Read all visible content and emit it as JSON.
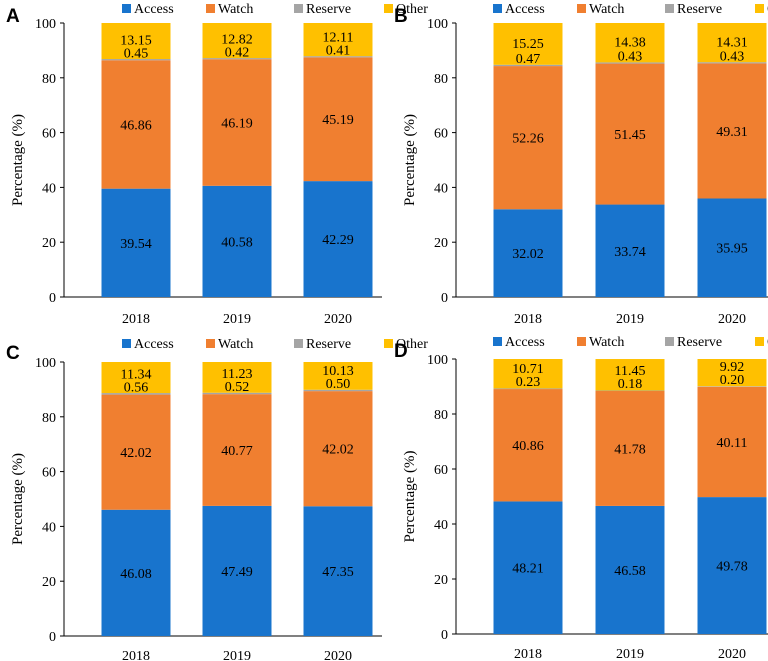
{
  "colors": {
    "Access": "#1874CD",
    "Watch": "#F07F30",
    "Reserve": "#A5A5A5",
    "Other": "#FFC000"
  },
  "chart_data": [
    {
      "panel": "A",
      "type": "bar",
      "stacked": true,
      "categories": [
        "2018",
        "2019",
        "2020"
      ],
      "series": [
        {
          "name": "Access",
          "values": [
            39.54,
            40.58,
            42.29
          ],
          "labels": [
            "39.54",
            "40.58",
            "42.29"
          ]
        },
        {
          "name": "Watch",
          "values": [
            46.86,
            46.19,
            45.19
          ],
          "labels": [
            "46.86",
            "46.19",
            "45.19"
          ]
        },
        {
          "name": "Reserve",
          "values": [
            0.45,
            0.42,
            0.41
          ],
          "labels": [
            "0.45",
            "0.42",
            "0.41"
          ]
        },
        {
          "name": "Other",
          "values": [
            13.15,
            12.82,
            12.11
          ],
          "labels": [
            "13.15",
            "12.82",
            "12.11"
          ]
        }
      ],
      "ylabel": "Percentage (%)",
      "ylim": [
        0,
        100
      ],
      "yticks": [
        "0",
        "20",
        "40",
        "60",
        "80",
        "100"
      ],
      "legend": "top"
    },
    {
      "panel": "B",
      "type": "bar",
      "stacked": true,
      "categories": [
        "2018",
        "2019",
        "2020"
      ],
      "series": [
        {
          "name": "Access",
          "values": [
            32.02,
            33.74,
            35.95
          ],
          "labels": [
            "32.02",
            "33.74",
            "35.95"
          ]
        },
        {
          "name": "Watch",
          "values": [
            52.26,
            51.45,
            49.31
          ],
          "labels": [
            "52.26",
            "51.45",
            "49.31"
          ]
        },
        {
          "name": "Reserve",
          "values": [
            0.47,
            0.43,
            0.43
          ],
          "labels": [
            "0.47",
            "0.43",
            "0.43"
          ]
        },
        {
          "name": "Other",
          "values": [
            15.25,
            14.38,
            14.31
          ],
          "labels": [
            "15.25",
            "14.38",
            "14.31"
          ]
        }
      ],
      "ylabel": "Percentage (%)",
      "ylim": [
        0,
        100
      ],
      "yticks": [
        "0",
        "20",
        "40",
        "60",
        "80",
        "100"
      ],
      "legend": "top"
    },
    {
      "panel": "C",
      "type": "bar",
      "stacked": true,
      "categories": [
        "2018",
        "2019",
        "2020"
      ],
      "series": [
        {
          "name": "Access",
          "values": [
            46.08,
            47.49,
            47.35
          ],
          "labels": [
            "46.08",
            "47.49",
            "47.35"
          ]
        },
        {
          "name": "Watch",
          "values": [
            42.02,
            40.77,
            42.02
          ],
          "labels": [
            "42.02",
            "40.77",
            "42.02"
          ]
        },
        {
          "name": "Reserve",
          "values": [
            0.56,
            0.52,
            0.5
          ],
          "labels": [
            "0.56",
            "0.52",
            "0.50"
          ]
        },
        {
          "name": "Other",
          "values": [
            11.34,
            11.23,
            10.13
          ],
          "labels": [
            "11.34",
            "11.23",
            "10.13"
          ]
        }
      ],
      "ylabel": "Percentage (%)",
      "ylim": [
        0,
        100
      ],
      "yticks": [
        "0",
        "20",
        "40",
        "60",
        "80",
        "100"
      ],
      "legend": "top"
    },
    {
      "panel": "D",
      "type": "bar",
      "stacked": true,
      "categories": [
        "2018",
        "2019",
        "2020"
      ],
      "series": [
        {
          "name": "Access",
          "values": [
            48.21,
            46.58,
            49.78
          ],
          "labels": [
            "48.21",
            "46.58",
            "49.78"
          ]
        },
        {
          "name": "Watch",
          "values": [
            40.86,
            41.78,
            40.11
          ],
          "labels": [
            "40.86",
            "41.78",
            "40.11"
          ]
        },
        {
          "name": "Reserve",
          "values": [
            0.23,
            0.18,
            0.2
          ],
          "labels": [
            "0.23",
            "0.18",
            "0.20"
          ]
        },
        {
          "name": "Other",
          "values": [
            10.71,
            11.45,
            9.92
          ],
          "labels": [
            "10.71",
            "11.45",
            "9.92"
          ]
        }
      ],
      "ylabel": "Percentage (%)",
      "ylim": [
        0,
        100
      ],
      "yticks": [
        "0",
        "20",
        "40",
        "60",
        "80",
        "100"
      ],
      "legend": "top"
    }
  ]
}
